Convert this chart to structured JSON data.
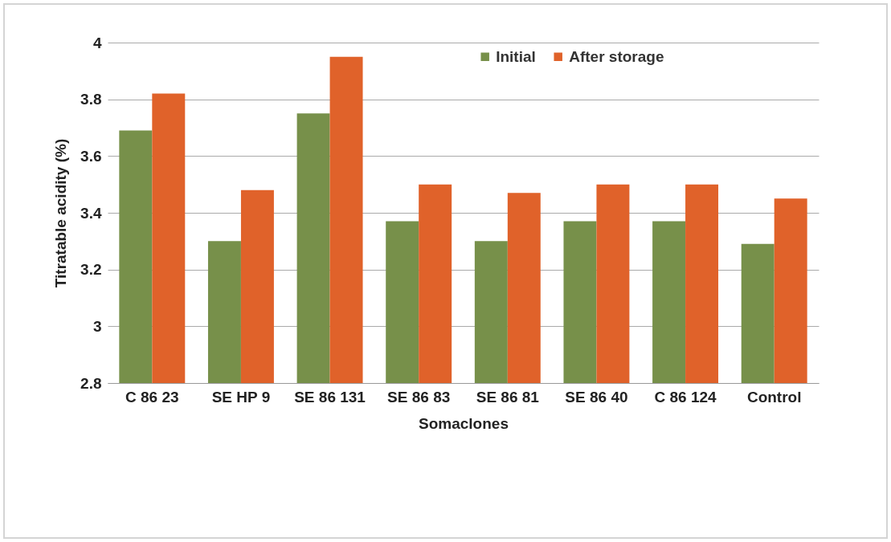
{
  "chart_data": {
    "type": "bar",
    "xlabel": "Somaclones",
    "ylabel": "Titratable acidity (%)",
    "categories": [
      "C 86 23",
      "SE HP 9",
      "SE 86 131",
      "SE 86 83",
      "SE 86 81",
      "SE 86 40",
      "C 86 124",
      "Control"
    ],
    "series": [
      {
        "name": "Initial",
        "color": "#77904a",
        "values": [
          3.69,
          3.3,
          3.75,
          3.37,
          3.3,
          3.37,
          3.37,
          3.29
        ]
      },
      {
        "name": "After storage",
        "color": "#e0622a",
        "values": [
          3.82,
          3.48,
          3.95,
          3.5,
          3.47,
          3.5,
          3.5,
          3.45
        ]
      }
    ],
    "ylim": [
      2.8,
      4
    ],
    "yticks": [
      2.8,
      3,
      3.2,
      3.4,
      3.6,
      3.8,
      4
    ],
    "grid": "y",
    "legend": "top"
  }
}
